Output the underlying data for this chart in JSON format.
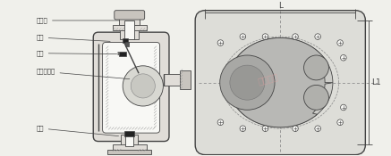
{
  "bg_color": "#f0f0eb",
  "line_color": "#444444",
  "dim_color": "#444444",
  "watermark_color": "#e8a0a0",
  "labels": {
    "paiqi": "排气口",
    "fumou": "阀膜",
    "gangan": "杆杆",
    "buxiu": "不锈钢浮球",
    "fati": "阀体"
  },
  "dim_L": "L",
  "dim_L1": "L1",
  "fig_width": 4.37,
  "fig_height": 1.75
}
